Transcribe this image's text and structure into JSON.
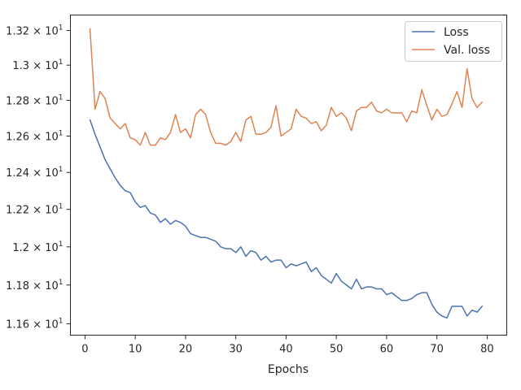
{
  "chart_data": {
    "type": "line",
    "title": "",
    "xlabel": "Epochs",
    "ylabel": "",
    "yscale": "log",
    "xlim": [
      -2.9,
      83.9
    ],
    "ylim": [
      11.5422,
      13.2902
    ],
    "grid": false,
    "legend_position": "top-right",
    "x_ticks": [
      {
        "value": 0,
        "label": "0"
      },
      {
        "value": 10,
        "label": "10"
      },
      {
        "value": 20,
        "label": "20"
      },
      {
        "value": 30,
        "label": "30"
      },
      {
        "value": 40,
        "label": "40"
      },
      {
        "value": 50,
        "label": "50"
      },
      {
        "value": 60,
        "label": "60"
      },
      {
        "value": 70,
        "label": "70"
      },
      {
        "value": 80,
        "label": "80"
      }
    ],
    "y_ticks": [
      {
        "value": 11.6,
        "mantissa": "1.16",
        "base": "10",
        "exponent": "1"
      },
      {
        "value": 11.8,
        "mantissa": "1.18",
        "base": "10",
        "exponent": "1"
      },
      {
        "value": 12.0,
        "mantissa": "1.2",
        "base": "10",
        "exponent": "1"
      },
      {
        "value": 12.2,
        "mantissa": "1.22",
        "base": "10",
        "exponent": "1"
      },
      {
        "value": 12.4,
        "mantissa": "1.24",
        "base": "10",
        "exponent": "1"
      },
      {
        "value": 12.6,
        "mantissa": "1.26",
        "base": "10",
        "exponent": "1"
      },
      {
        "value": 12.8,
        "mantissa": "1.28",
        "base": "10",
        "exponent": "1"
      },
      {
        "value": 13.0,
        "mantissa": "1.3",
        "base": "10",
        "exponent": "1"
      },
      {
        "value": 13.2,
        "mantissa": "1.32",
        "base": "10",
        "exponent": "1"
      }
    ],
    "x": [
      1,
      2,
      3,
      4,
      5,
      6,
      7,
      8,
      9,
      10,
      11,
      12,
      13,
      14,
      15,
      16,
      17,
      18,
      19,
      20,
      21,
      22,
      23,
      24,
      25,
      26,
      27,
      28,
      29,
      30,
      31,
      32,
      33,
      34,
      35,
      36,
      37,
      38,
      39,
      40,
      41,
      42,
      43,
      44,
      45,
      46,
      47,
      48,
      49,
      50,
      51,
      52,
      53,
      54,
      55,
      56,
      57,
      58,
      59,
      60,
      61,
      62,
      63,
      64,
      65,
      66,
      67,
      68,
      69,
      70,
      71,
      72,
      73,
      74,
      75,
      76,
      77,
      78,
      79
    ],
    "series": [
      {
        "name": "Loss",
        "color": "#4c72b0",
        "values": [
          12.69,
          12.61,
          12.54,
          12.47,
          12.42,
          12.37,
          12.33,
          12.3,
          12.29,
          12.24,
          12.21,
          12.22,
          12.18,
          12.17,
          12.13,
          12.15,
          12.12,
          12.14,
          12.13,
          12.11,
          12.07,
          12.06,
          12.05,
          12.05,
          12.04,
          12.03,
          12.0,
          11.99,
          11.99,
          11.97,
          12.0,
          11.95,
          11.98,
          11.97,
          11.93,
          11.95,
          11.92,
          11.93,
          11.93,
          11.89,
          11.91,
          11.9,
          11.91,
          11.92,
          11.87,
          11.89,
          11.85,
          11.83,
          11.81,
          11.86,
          11.82,
          11.8,
          11.78,
          11.83,
          11.78,
          11.79,
          11.79,
          11.78,
          11.78,
          11.75,
          11.76,
          11.74,
          11.72,
          11.72,
          11.73,
          11.75,
          11.76,
          11.76,
          11.7,
          11.66,
          11.64,
          11.63,
          11.69,
          11.69,
          11.69,
          11.64,
          11.67,
          11.66,
          11.69
        ]
      },
      {
        "name": "Val. loss",
        "color": "#dd8452",
        "values": [
          13.21,
          12.75,
          12.85,
          12.81,
          12.7,
          12.67,
          12.64,
          12.67,
          12.59,
          12.58,
          12.55,
          12.62,
          12.55,
          12.55,
          12.59,
          12.58,
          12.62,
          12.72,
          12.62,
          12.64,
          12.59,
          12.72,
          12.75,
          12.72,
          12.62,
          12.56,
          12.56,
          12.55,
          12.57,
          12.62,
          12.57,
          12.69,
          12.71,
          12.61,
          12.61,
          12.62,
          12.65,
          12.77,
          12.6,
          12.62,
          12.64,
          12.75,
          12.71,
          12.7,
          12.67,
          12.68,
          12.63,
          12.66,
          12.76,
          12.71,
          12.73,
          12.7,
          12.63,
          12.74,
          12.76,
          12.76,
          12.79,
          12.74,
          12.73,
          12.75,
          12.73,
          12.73,
          12.73,
          12.68,
          12.74,
          12.73,
          12.86,
          12.77,
          12.69,
          12.75,
          12.71,
          12.72,
          12.78,
          12.85,
          12.76,
          12.98,
          12.81,
          12.76,
          12.79
        ]
      }
    ]
  }
}
